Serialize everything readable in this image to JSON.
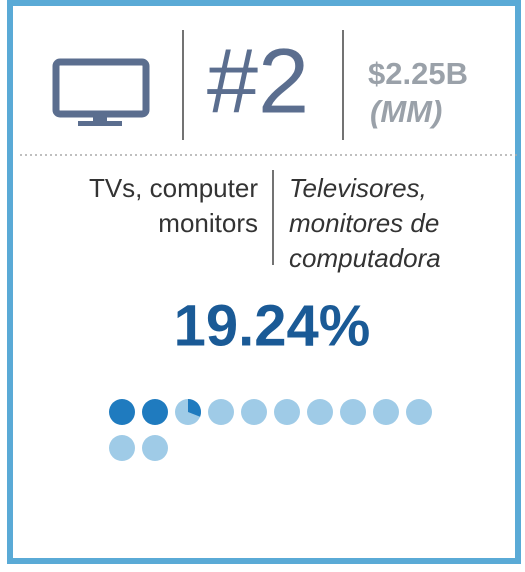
{
  "rank": "#2",
  "market_value": "$2.25B",
  "market_unit": "(MM)",
  "english_lines": [
    "TVs, computer",
    "monitors"
  ],
  "spanish_lines": [
    "Televisores,",
    "monitores de",
    "computadora"
  ],
  "percent": {
    "value": 19.24,
    "label": "19.24%"
  },
  "dot_count": 12
}
